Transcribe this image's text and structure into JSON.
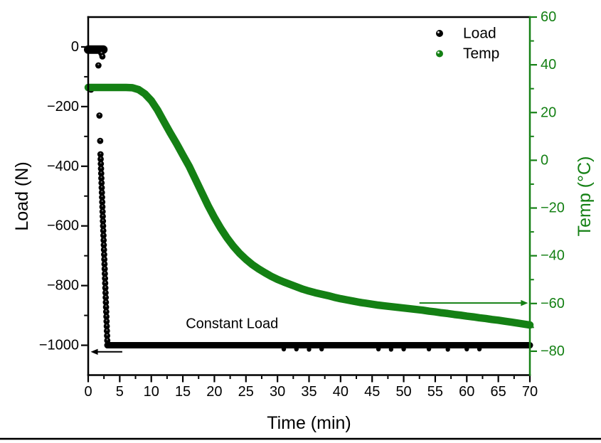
{
  "figure": {
    "background": "#ffffff",
    "bottom_rule_color": "#000000"
  },
  "chart_data": {
    "type": "scatter",
    "title": "",
    "grid": false,
    "legend_position": "top-right-inside",
    "x_axis": {
      "label": "Time (min)",
      "min": 0,
      "max": 70,
      "major_tick_values": [
        0,
        5,
        10,
        15,
        20,
        25,
        30,
        35,
        40,
        45,
        50,
        55,
        60,
        65,
        70
      ],
      "major_tick_labels": [
        "0",
        "5",
        "10",
        "15",
        "20",
        "25",
        "30",
        "35",
        "40",
        "45",
        "50",
        "55",
        "60",
        "65",
        "70"
      ],
      "minor_tick_values": [
        2.5,
        7.5,
        12.5,
        17.5,
        22.5,
        27.5,
        32.5,
        37.5,
        42.5,
        47.5,
        52.5,
        57.5,
        62.5,
        67.5
      ],
      "color": "#000000"
    },
    "left_axis": {
      "label": "Load (N)",
      "min": -1100,
      "max": 100,
      "major_tick_values": [
        0,
        -200,
        -400,
        -600,
        -800,
        -1000
      ],
      "major_tick_labels": [
        "0",
        "−200",
        "−400",
        "−600",
        "−800",
        "−1000"
      ],
      "minor_tick_values": [
        -100,
        -300,
        -500,
        -700,
        -900
      ],
      "color": "#000000"
    },
    "right_axis": {
      "label": "Temp (°C)",
      "min": -90,
      "max": 60,
      "major_tick_values": [
        60,
        40,
        20,
        0,
        -20,
        -40,
        -60,
        -80
      ],
      "major_tick_labels": [
        "60",
        "40",
        "20",
        "0",
        "−20",
        "−40",
        "−60",
        "−80"
      ],
      "minor_tick_values": [
        50,
        30,
        10,
        -10,
        -30,
        -50,
        -70
      ],
      "color": "#148014"
    },
    "series": [
      {
        "name": "Load",
        "axis": "left",
        "color": "#000000",
        "marker": "circle",
        "baseline_segment": {
          "t_start": 0,
          "t_end": 2.4,
          "value": -9
        },
        "scatter_points": [
          [
            0.45,
            -143
          ],
          [
            1.62,
            -62
          ],
          [
            1.78,
            -230
          ],
          [
            1.9,
            -315
          ],
          [
            2.1,
            -22
          ],
          [
            2.25,
            -32
          ]
        ],
        "drop_segment": {
          "t_start": 1.95,
          "t_end": 3.05,
          "value_start": -360,
          "value_end": -1000,
          "points": 41
        },
        "constant_segment": {
          "t_start": 3.05,
          "t_end": 70,
          "value": -1000
        },
        "noise_points": [
          [
            31,
            -1013
          ],
          [
            33,
            -1013
          ],
          [
            35,
            -1014
          ],
          [
            37,
            -1013
          ],
          [
            46,
            -1013
          ],
          [
            48,
            -1014
          ],
          [
            50,
            -1013
          ],
          [
            54,
            -1013
          ],
          [
            57,
            -1014
          ],
          [
            60,
            -1013
          ],
          [
            62,
            -1013
          ]
        ]
      },
      {
        "name": "Temp",
        "axis": "right",
        "color": "#148014",
        "marker": "circle",
        "t": [
          0,
          1,
          2,
          3,
          4,
          5,
          6,
          7,
          8,
          9,
          10,
          11,
          12,
          13,
          14,
          15,
          16,
          17,
          18,
          19,
          20,
          21,
          22,
          23,
          24,
          25,
          26,
          27,
          28,
          29,
          30,
          31,
          32,
          33,
          34,
          35,
          36,
          37,
          38,
          39,
          40,
          41,
          42,
          43,
          44,
          45,
          46,
          47,
          48,
          49,
          50,
          51,
          52,
          53,
          54,
          55,
          56,
          57,
          58,
          59,
          60,
          61,
          62,
          63,
          64,
          65,
          66,
          67,
          68,
          69,
          70
        ],
        "v": [
          30.5,
          30.5,
          30.5,
          30.5,
          30.5,
          30.5,
          30.5,
          30.4,
          29.6,
          27.8,
          25,
          21,
          16.2,
          11.5,
          7,
          2.2,
          -2.5,
          -8,
          -13.5,
          -19,
          -24,
          -28.5,
          -32.5,
          -36,
          -39,
          -41.5,
          -43.7,
          -45.5,
          -47.1,
          -48.6,
          -49.9,
          -51,
          -52,
          -53,
          -54,
          -54.8,
          -55.5,
          -56.1,
          -56.7,
          -57.4,
          -58,
          -58.5,
          -59,
          -59.5,
          -59.9,
          -60.3,
          -60.7,
          -61,
          -61.3,
          -61.6,
          -61.9,
          -62.2,
          -62.5,
          -62.8,
          -63.2,
          -63.5,
          -63.9,
          -64.2,
          -64.6,
          -64.9,
          -65.3,
          -65.6,
          -66,
          -66.3,
          -66.7,
          -67,
          -67.4,
          -67.8,
          -68.2,
          -68.6,
          -69
        ]
      }
    ],
    "annotations": {
      "constant_load": {
        "text": "Constant Load",
        "t": 22.8,
        "load_value": -928
      },
      "load_arrow": {
        "axis": "left",
        "value": -1022,
        "t_tail": 5.4,
        "t_head": 0.4,
        "color": "#000000"
      },
      "temp_arrow": {
        "axis": "right",
        "value": -59.8,
        "t_tail": 52.5,
        "t_head": 69.7,
        "color": "#148014"
      }
    }
  }
}
